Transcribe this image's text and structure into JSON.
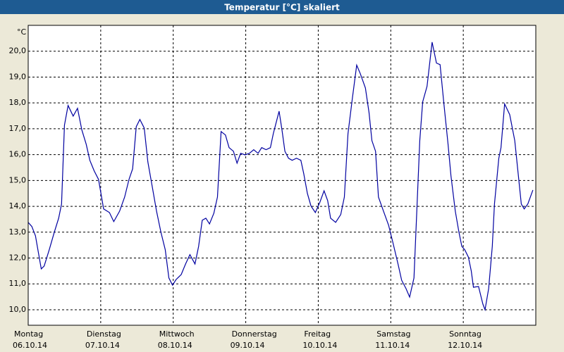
{
  "chart_data": {
    "type": "line",
    "title": "Temperatur [°C] skaliert",
    "y_unit": "°C",
    "xlim": [
      0,
      7
    ],
    "ylim": [
      9.4,
      21.0
    ],
    "xticks": [
      {
        "value": 0,
        "label": "Montag"
      },
      {
        "value": 1,
        "label": "Dienstag"
      },
      {
        "value": 2,
        "label": "Mittwoch"
      },
      {
        "value": 3,
        "label": "Donnerstag"
      },
      {
        "value": 4,
        "label": "Freitag"
      },
      {
        "value": 5,
        "label": "Samstag"
      },
      {
        "value": 6,
        "label": "Sonntag"
      }
    ],
    "xtick_dates": [
      "06.10.14",
      "07.10.14",
      "08.10.14",
      "09.10.14",
      "10.10.14",
      "11.10.14",
      "12.10.14"
    ],
    "yticks": [
      {
        "value": 10,
        "label": "10,0"
      },
      {
        "value": 11,
        "label": "11,0"
      },
      {
        "value": 12,
        "label": "12,0"
      },
      {
        "value": 13,
        "label": "13,0"
      },
      {
        "value": 14,
        "label": "14,0"
      },
      {
        "value": 15,
        "label": "15,0"
      },
      {
        "value": 16,
        "label": "16,0"
      },
      {
        "value": 17,
        "label": "17,0"
      },
      {
        "value": 18,
        "label": "18,0"
      },
      {
        "value": 19,
        "label": "19,0"
      },
      {
        "value": 20,
        "label": "20,0"
      }
    ],
    "grid": true,
    "series": [
      {
        "color": "#0000a0",
        "x": [
          0,
          0.05,
          0.1,
          0.18,
          0.22,
          0.29,
          0.36,
          0.42,
          0.46,
          0.5,
          0.55,
          0.62,
          0.68,
          0.74,
          0.8,
          0.85,
          0.91,
          0.97,
          1.04,
          1.12,
          1.18,
          1.26,
          1.33,
          1.39,
          1.44,
          1.49,
          1.54,
          1.6,
          1.65,
          1.71,
          1.77,
          1.83,
          1.89,
          1.94,
          1.99,
          2.04,
          2.11,
          2.17,
          2.23,
          2.3,
          2.35,
          2.4,
          2.45,
          2.5,
          2.56,
          2.61,
          2.66,
          2.72,
          2.77,
          2.83,
          2.88,
          2.93,
          2.99,
          3.05,
          3.11,
          3.17,
          3.22,
          3.28,
          3.34,
          3.38,
          3.46,
          3.5,
          3.54,
          3.59,
          3.64,
          3.7,
          3.76,
          3.8,
          3.85,
          3.9,
          3.96,
          4.02,
          4.08,
          4.13,
          4.17,
          4.24,
          4.31,
          4.36,
          4.41,
          4.47,
          4.53,
          4.58,
          4.65,
          4.7,
          4.74,
          4.79,
          4.83,
          4.9,
          4.97,
          5.03,
          5.1,
          5.15,
          5.21,
          5.26,
          5.32,
          5.4,
          5.44,
          5.5,
          5.57,
          5.63,
          5.68,
          5.73,
          5.79,
          5.83,
          5.89,
          5.94,
          5.98,
          6.02,
          6.07,
          6.11,
          6.14,
          6.21,
          6.27,
          6.3,
          6.35,
          6.4,
          6.43,
          6.49,
          6.52,
          6.57,
          6.64,
          6.71,
          6.75,
          6.8,
          6.84,
          6.89,
          6.96
        ],
        "values": [
          13.38,
          13.22,
          12.86,
          11.58,
          11.69,
          12.32,
          13.0,
          13.54,
          14.09,
          17.14,
          17.9,
          17.49,
          17.79,
          16.95,
          16.4,
          15.78,
          15.37,
          15.04,
          13.9,
          13.76,
          13.41,
          13.81,
          14.36,
          15.04,
          15.45,
          17.08,
          17.36,
          17.03,
          15.72,
          14.77,
          13.81,
          13.0,
          12.32,
          11.23,
          10.95,
          11.17,
          11.36,
          11.77,
          12.13,
          11.77,
          12.45,
          13.46,
          13.54,
          13.32,
          13.73,
          14.36,
          16.89,
          16.76,
          16.27,
          16.13,
          15.67,
          16.05,
          15.99,
          16.05,
          16.19,
          16.05,
          16.27,
          16.19,
          16.27,
          16.81,
          17.68,
          16.95,
          16.13,
          15.86,
          15.78,
          15.86,
          15.78,
          15.26,
          14.5,
          14.01,
          13.76,
          14.14,
          14.6,
          14.22,
          13.54,
          13.38,
          13.68,
          14.36,
          16.81,
          18.17,
          19.46,
          19.13,
          18.58,
          17.63,
          16.54,
          16.13,
          14.36,
          13.81,
          13.27,
          12.59,
          11.77,
          11.14,
          10.82,
          10.49,
          11.23,
          16.54,
          18.04,
          18.64,
          20.35,
          19.54,
          19.48,
          18.04,
          16.4,
          15.18,
          13.81,
          13.0,
          12.45,
          12.32,
          12.04,
          11.5,
          10.87,
          10.9,
          10.22,
          10.0,
          10.82,
          12.45,
          14.09,
          15.86,
          16.27,
          17.96,
          17.55,
          16.54,
          15.45,
          14.09,
          13.9,
          14.09,
          14.63
        ]
      }
    ]
  }
}
